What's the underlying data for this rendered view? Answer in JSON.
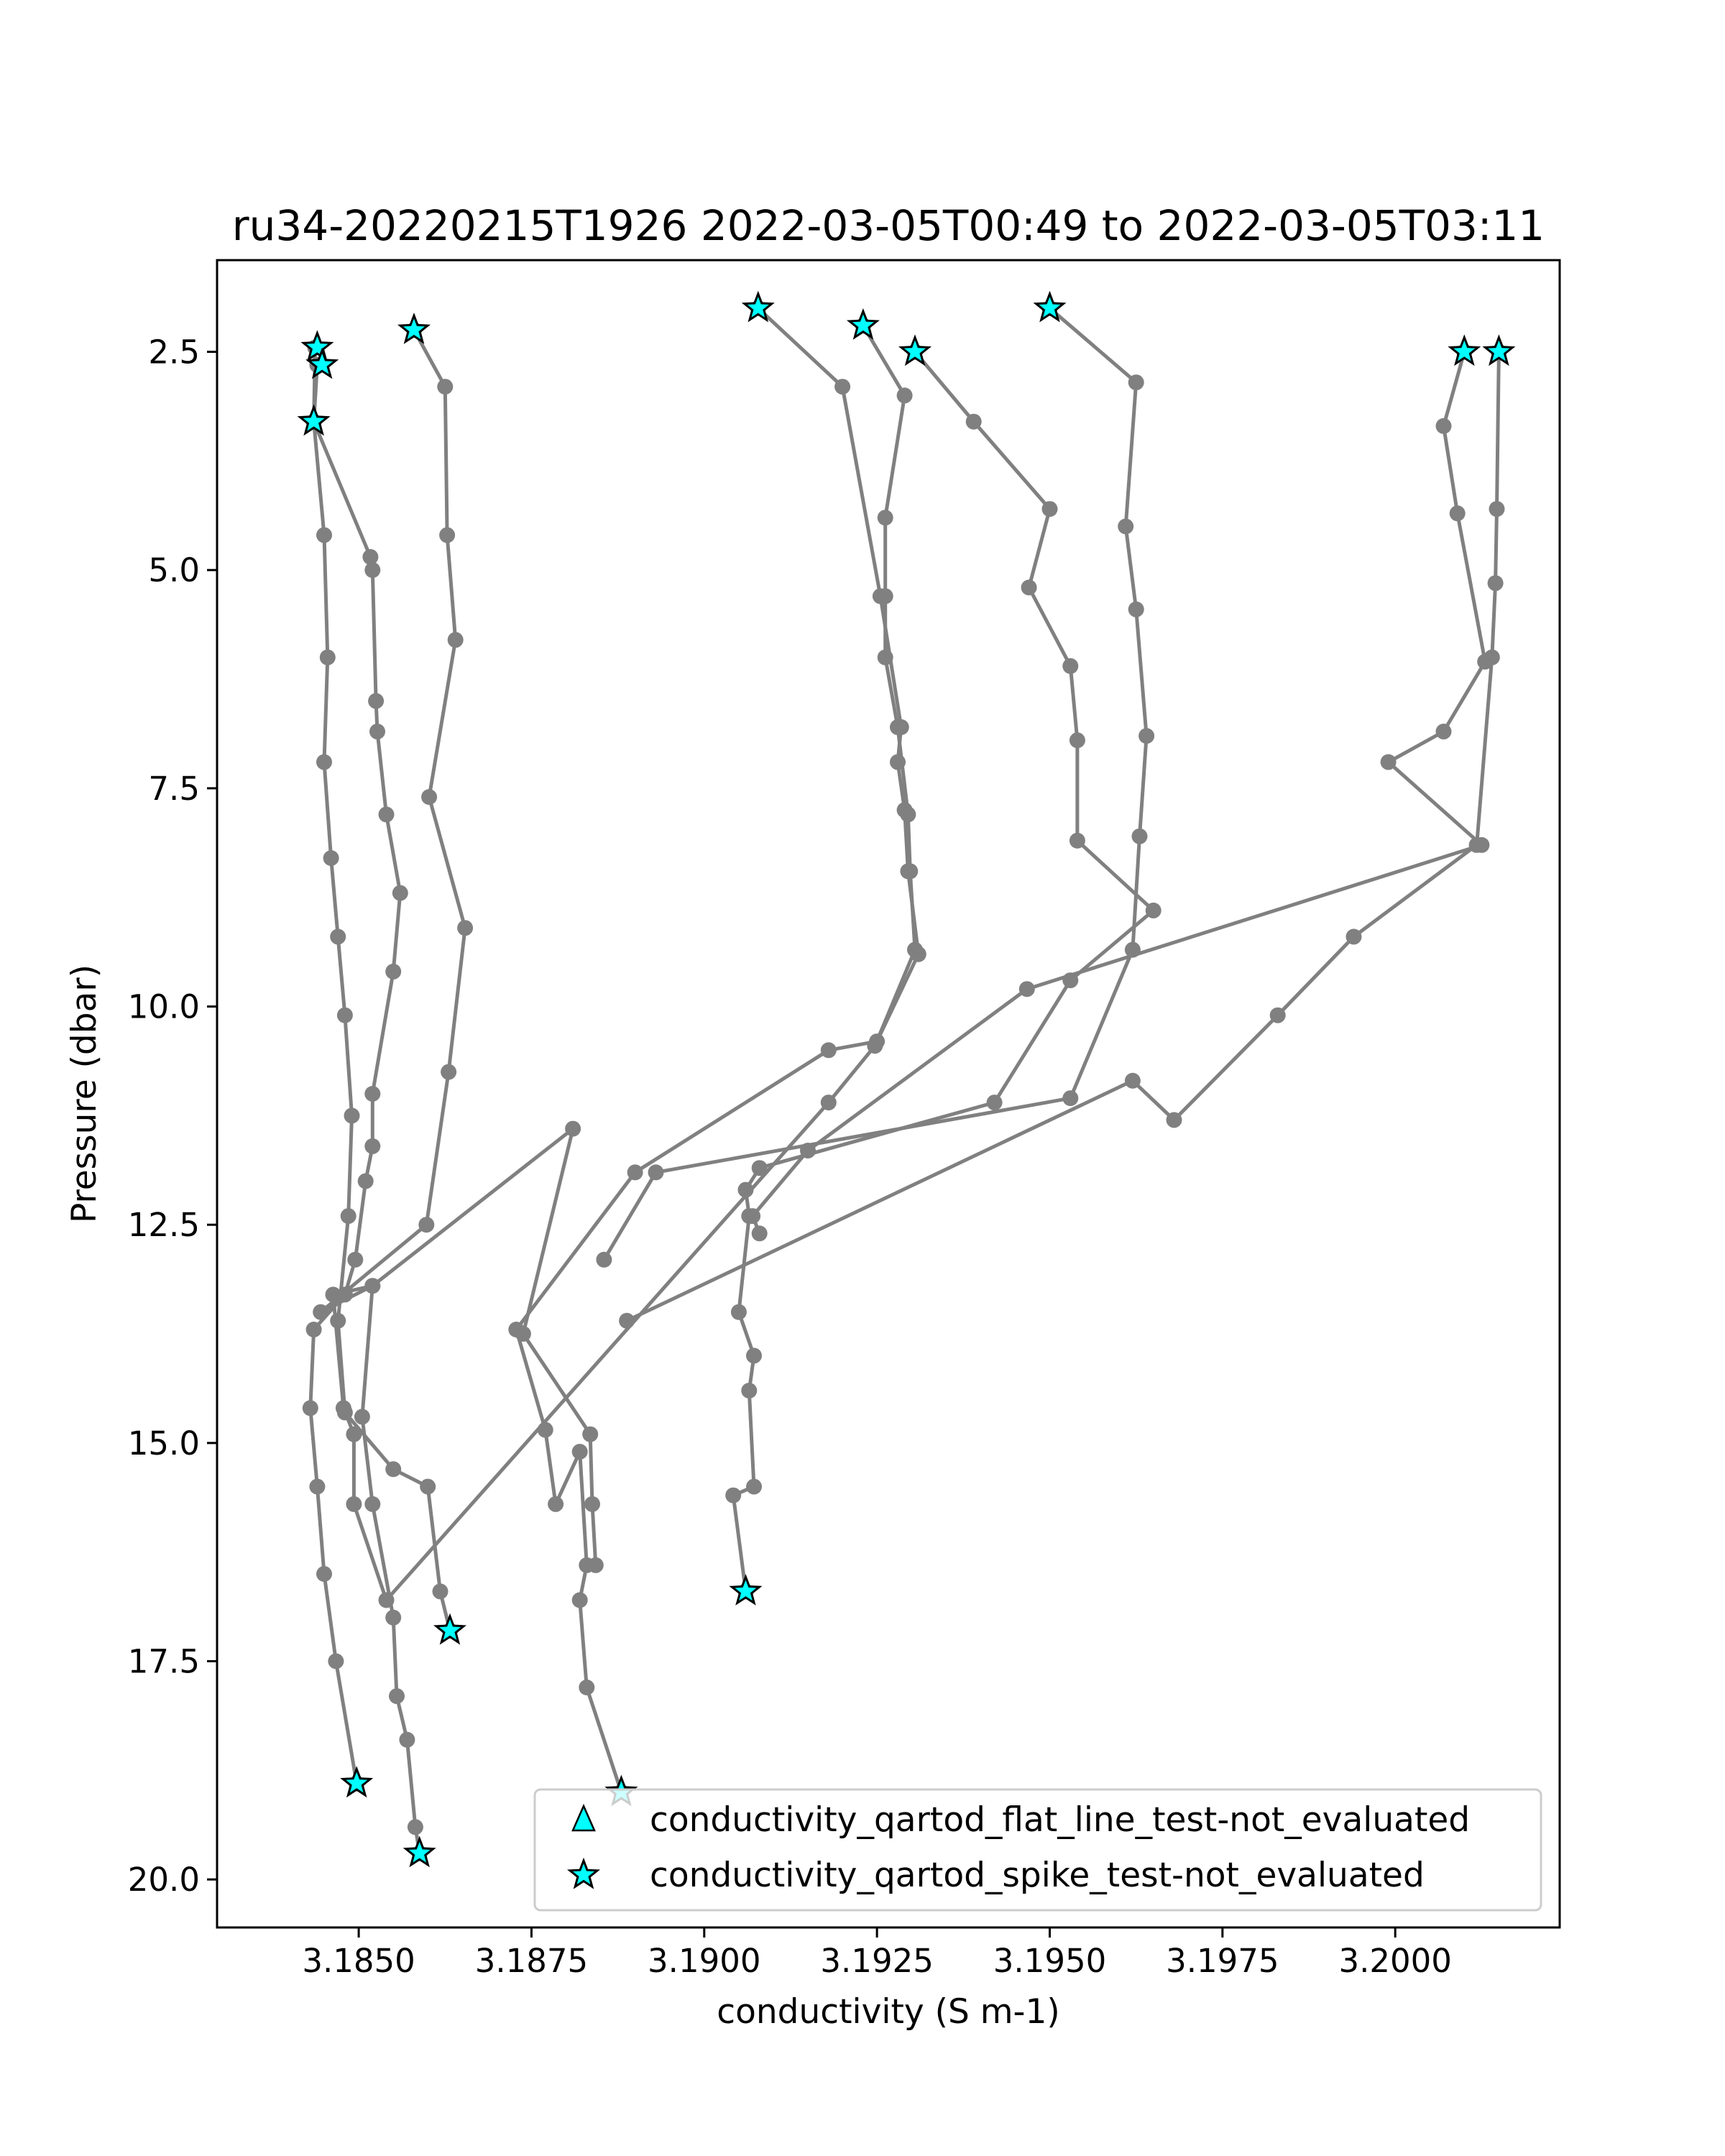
{
  "chart_data": {
    "type": "line",
    "title": "ru34-20220215T1926 2022-03-05T00:49 to 2022-03-05T03:11",
    "xlabel": "conductivity (S m-1)",
    "ylabel": "Pressure (dbar)",
    "xlim": [
      3.18295,
      3.20238
    ],
    "ylim": [
      20.55,
      1.45
    ],
    "y_inverted": true,
    "grid": false,
    "xticks": [
      {
        "value": 3.185,
        "label": "3.1850"
      },
      {
        "value": 3.1875,
        "label": "3.1875"
      },
      {
        "value": 3.19,
        "label": "3.1900"
      },
      {
        "value": 3.1925,
        "label": "3.1925"
      },
      {
        "value": 3.195,
        "label": "3.1950"
      },
      {
        "value": 3.1975,
        "label": "3.1975"
      },
      {
        "value": 3.2,
        "label": "3.2000"
      }
    ],
    "yticks": [
      {
        "value": 2.5,
        "label": "2.5"
      },
      {
        "value": 5.0,
        "label": "5.0"
      },
      {
        "value": 7.5,
        "label": "7.5"
      },
      {
        "value": 10.0,
        "label": "10.0"
      },
      {
        "value": 12.5,
        "label": "12.5"
      },
      {
        "value": 15.0,
        "label": "15.0"
      },
      {
        "value": 17.5,
        "label": "17.5"
      },
      {
        "value": 20.0,
        "label": "20.0"
      }
    ],
    "line_color": "#808080",
    "marker_color": "#808080",
    "legend_position": "lower-right",
    "legend": [
      {
        "label": "conductivity_qartod_flat_line_test-not_evaluated",
        "marker": "triangle",
        "color": "#00ffff"
      },
      {
        "label": "conductivity_qartod_spike_test-not_evaluated",
        "marker": "star",
        "color": "#00ffff"
      }
    ],
    "series": [
      {
        "points": [
          [
            3.18632,
            17.15
          ],
          [
            3.18618,
            16.7
          ],
          [
            3.186,
            15.5
          ],
          [
            3.1855,
            15.3
          ],
          [
            3.1848,
            14.65
          ],
          [
            3.1847,
            13.6
          ],
          [
            3.18485,
            12.4
          ],
          [
            3.1849,
            11.25
          ],
          [
            3.1848,
            10.1
          ],
          [
            3.1847,
            9.2
          ],
          [
            3.1846,
            8.3
          ],
          [
            3.1845,
            7.2
          ],
          [
            3.18455,
            6.0
          ],
          [
            3.1845,
            4.6
          ],
          [
            3.18435,
            3.3
          ],
          [
            3.1844,
            2.65
          ]
        ]
      },
      {
        "points": [
          [
            3.18497,
            18.9
          ],
          [
            3.18467,
            17.5
          ],
          [
            3.1845,
            16.5
          ],
          [
            3.1844,
            15.5
          ],
          [
            3.1843,
            14.6
          ],
          [
            3.18435,
            13.7
          ],
          [
            3.1848,
            13.3
          ],
          [
            3.18495,
            12.9
          ],
          [
            3.1851,
            12.0
          ],
          [
            3.1852,
            11.6
          ],
          [
            3.1852,
            11.0
          ],
          [
            3.1855,
            9.6
          ],
          [
            3.1856,
            8.7
          ],
          [
            3.1854,
            7.8
          ],
          [
            3.18527,
            6.85
          ],
          [
            3.18525,
            6.5
          ],
          [
            3.1852,
            5.0
          ],
          [
            3.18517,
            4.85
          ],
          [
            3.18435,
            3.3
          ],
          [
            3.18437,
            2.45
          ]
        ]
      },
      {
        "points": [
          [
            3.18588,
            19.7
          ],
          [
            3.18582,
            19.4
          ],
          [
            3.1857,
            18.4
          ],
          [
            3.18555,
            17.9
          ],
          [
            3.1855,
            17.0
          ],
          [
            3.1852,
            15.7
          ],
          [
            3.18505,
            14.7
          ],
          [
            3.1852,
            13.2
          ],
          [
            3.18445,
            13.5
          ],
          [
            3.18598,
            12.5
          ],
          [
            3.1863,
            10.75
          ],
          [
            3.18654,
            9.1
          ],
          [
            3.18602,
            7.6
          ],
          [
            3.1864,
            5.8
          ],
          [
            3.18628,
            4.6
          ],
          [
            3.18625,
            2.9
          ],
          [
            3.1858,
            2.25
          ]
        ]
      },
      {
        "points": [
          [
            3.1888,
            19.0
          ],
          [
            3.1883,
            17.8
          ],
          [
            3.1882,
            16.8
          ],
          [
            3.1883,
            16.4
          ],
          [
            3.1882,
            15.1
          ],
          [
            3.18785,
            15.7
          ],
          [
            3.1877,
            14.85
          ],
          [
            3.18728,
            13.7
          ],
          [
            3.189,
            11.9
          ],
          [
            3.1918,
            10.5
          ],
          [
            3.1925,
            10.4
          ],
          [
            3.1931,
            9.4
          ],
          [
            3.19295,
            8.45
          ],
          [
            3.1929,
            7.75
          ],
          [
            3.1928,
            7.2
          ],
          [
            3.19285,
            6.8
          ],
          [
            3.19255,
            5.3
          ],
          [
            3.192,
            2.9
          ],
          [
            3.19078,
            2.0
          ]
        ]
      },
      {
        "points": [
          [
            3.18843,
            16.4
          ],
          [
            3.18838,
            15.7
          ],
          [
            3.18835,
            14.9
          ],
          [
            3.18738,
            13.75
          ],
          [
            3.1881,
            11.4
          ],
          [
            3.1852,
            13.2
          ],
          [
            3.18463,
            13.3
          ],
          [
            3.18478,
            14.6
          ],
          [
            3.18493,
            14.9
          ],
          [
            3.18493,
            15.7
          ],
          [
            3.1854,
            16.8
          ],
          [
            3.1918,
            11.1
          ],
          [
            3.19247,
            10.45
          ],
          [
            3.19305,
            9.35
          ],
          [
            3.19298,
            8.45
          ],
          [
            3.19295,
            7.8
          ],
          [
            3.1928,
            6.8
          ],
          [
            3.19262,
            6.0
          ],
          [
            3.19262,
            5.3
          ],
          [
            3.19262,
            4.4
          ],
          [
            3.1929,
            3.0
          ],
          [
            3.1923,
            2.2
          ]
        ]
      },
      {
        "points": [
          [
            3.1906,
            16.7
          ],
          [
            3.19042,
            15.6
          ],
          [
            3.19072,
            15.5
          ],
          [
            3.19065,
            14.4
          ],
          [
            3.19072,
            14.0
          ],
          [
            3.1905,
            13.5
          ],
          [
            3.19065,
            12.4
          ],
          [
            3.1906,
            12.1
          ],
          [
            3.1908,
            11.85
          ],
          [
            3.1942,
            11.1
          ],
          [
            3.1953,
            9.7
          ],
          [
            3.1965,
            8.9
          ],
          [
            3.1954,
            8.1
          ],
          [
            3.1954,
            6.95
          ],
          [
            3.1953,
            6.1
          ],
          [
            3.1947,
            5.2
          ],
          [
            3.195,
            4.3
          ],
          [
            3.1939,
            3.3
          ],
          [
            3.19305,
            2.5
          ]
        ]
      },
      {
        "points": [
          [
            3.1908,
            12.6
          ],
          [
            3.1907,
            12.4
          ],
          [
            3.1915,
            11.65
          ],
          [
            3.19467,
            9.8
          ],
          [
            3.20125,
            8.15
          ],
          [
            3.1999,
            7.2
          ],
          [
            3.2007,
            6.85
          ],
          [
            3.2013,
            6.05
          ],
          [
            3.2009,
            4.35
          ],
          [
            3.2007,
            3.35
          ],
          [
            3.201,
            2.5
          ]
        ]
      },
      {
        "points": [
          [
            3.18855,
            12.9
          ],
          [
            3.1893,
            11.9
          ],
          [
            3.1953,
            11.05
          ],
          [
            3.1962,
            9.35
          ],
          [
            3.1963,
            8.05
          ],
          [
            3.1964,
            6.9
          ],
          [
            3.19625,
            5.45
          ],
          [
            3.1961,
            4.5
          ],
          [
            3.19625,
            2.85
          ],
          [
            3.195,
            2.0
          ]
        ]
      },
      {
        "points": [
          [
            3.18888,
            13.6
          ],
          [
            3.1962,
            10.85
          ],
          [
            3.1968,
            11.3
          ],
          [
            3.1983,
            10.1
          ],
          [
            3.1994,
            9.2
          ],
          [
            3.20118,
            8.15
          ],
          [
            3.2014,
            6.0
          ],
          [
            3.20145,
            5.15
          ],
          [
            3.20147,
            4.3
          ],
          [
            3.2015,
            2.5
          ]
        ]
      }
    ],
    "flag_points": [
      [
        3.1844,
        2.45
      ],
      [
        3.18447,
        2.65
      ],
      [
        3.18435,
        3.3
      ],
      [
        3.1858,
        2.25
      ],
      [
        3.19078,
        2.0
      ],
      [
        3.1923,
        2.2
      ],
      [
        3.19305,
        2.5
      ],
      [
        3.195,
        2.0
      ],
      [
        3.201,
        2.5
      ],
      [
        3.2015,
        2.5
      ],
      [
        3.18632,
        17.15
      ],
      [
        3.1906,
        16.7
      ],
      [
        3.18497,
        18.9
      ],
      [
        3.18588,
        19.7
      ],
      [
        3.1888,
        19.0
      ]
    ]
  }
}
